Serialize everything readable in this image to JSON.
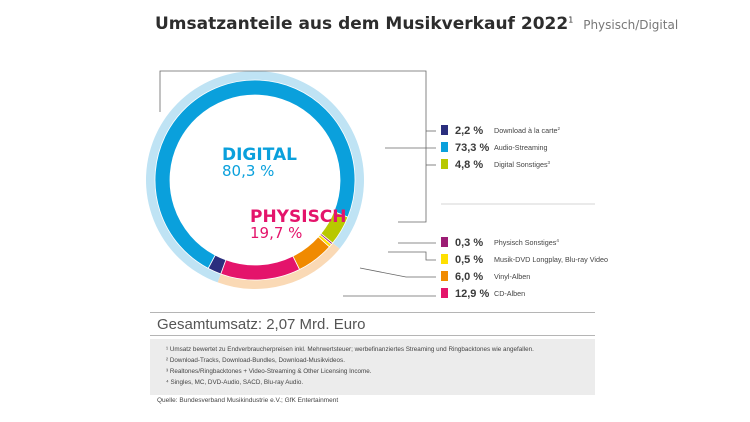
{
  "title": {
    "main": "Umsatzanteile aus dem Musikverkauf 2022",
    "footnote_mark": "1",
    "subtitle": "Physisch/Digital"
  },
  "chart_data": {
    "type": "pie",
    "groups": [
      {
        "label": "DIGITAL",
        "value_text": "80,3 %",
        "value": 80.3,
        "color": "#0aa0dc"
      },
      {
        "label": "PHYSISCH",
        "value_text": "19,7 %",
        "value": 19.7,
        "color": "#e4146b"
      }
    ],
    "slices": [
      {
        "label": "Download à la carte",
        "note": "2",
        "value": 2.2,
        "value_text": "2,2 %",
        "color": "#2b2e7e",
        "group": "DIGITAL"
      },
      {
        "label": "Audio-Streaming",
        "note": "",
        "value": 73.3,
        "value_text": "73,3 %",
        "color": "#0aa0dc",
        "group": "DIGITAL"
      },
      {
        "label": "Digital Sonstiges",
        "note": "3",
        "value": 4.8,
        "value_text": "4,8 %",
        "color": "#b8c800",
        "group": "DIGITAL"
      },
      {
        "label": "Physisch Sonstiges",
        "note": "4",
        "value": 0.3,
        "value_text": "0,3 %",
        "color": "#9c1d74",
        "group": "PHYSISCH"
      },
      {
        "label": "Musik-DVD Longplay, Blu-ray Video",
        "note": "",
        "value": 0.5,
        "value_text": "0,5 %",
        "color": "#ffe000",
        "group": "PHYSISCH"
      },
      {
        "label": "Vinyl-Alben",
        "note": "",
        "value": 6.0,
        "value_text": "6,0 %",
        "color": "#f08a00",
        "group": "PHYSISCH"
      },
      {
        "label": "CD-Alben",
        "note": "",
        "value": 12.9,
        "value_text": "12,9 %",
        "color": "#e4146b",
        "group": "PHYSISCH"
      }
    ],
    "ring_colors": {
      "digital": "#bfe3f4",
      "physisch": "#fad9b5"
    }
  },
  "total": "Gesamtumsatz: 2,07 Mrd. Euro",
  "footnotes": [
    "¹ Umsatz bewertet zu Endverbraucherpreisen inkl. Mehrwertsteuer; werbefinanziertes Streaming und Ringbacktones wie angefallen.",
    "² Download-Tracks, Download-Bundles, Download-Musikvideos.",
    "³ Realtones/Ringbacktones + Video-Streaming & Other Licensing Income.",
    "⁴ Singles, MC, DVD-Audio, SACD, Blu-ray Audio."
  ],
  "source": "Quelle: Bundesverband Musikindustrie e.V.; GfK Entertainment"
}
